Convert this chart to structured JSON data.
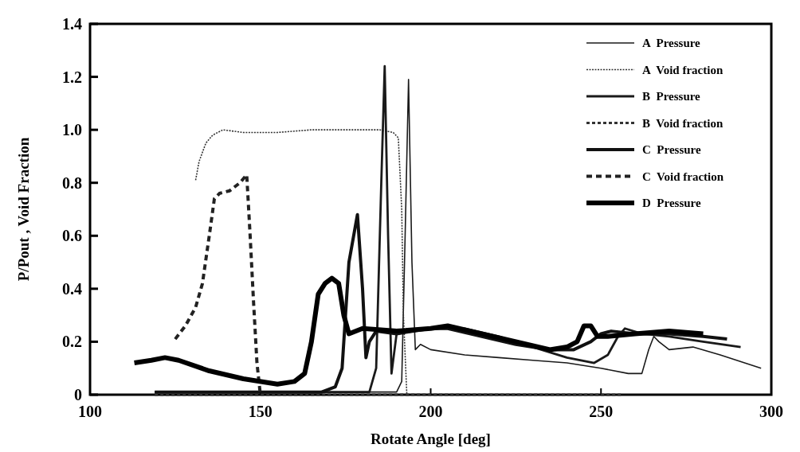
{
  "chart_data": {
    "type": "line",
    "xlabel": "Rotate Angle [deg]",
    "ylabel": "P/Pout , Void Fraction",
    "xlim": [
      100,
      300
    ],
    "ylim": [
      0,
      1.4
    ],
    "xticks": [
      100,
      150,
      200,
      250,
      300
    ],
    "yticks": [
      {
        "value": 0,
        "label": "0"
      },
      {
        "value": 0.2,
        "label": "0.2"
      },
      {
        "value": 0.4,
        "label": "0.4"
      },
      {
        "value": 0.6,
        "label": "0.6"
      },
      {
        "value": 0.8,
        "label": "0.8"
      },
      {
        "value": 1.0,
        "label": "1.0"
      },
      {
        "value": 1.2,
        "label": "1.2"
      },
      {
        "value": 1.4,
        "label": "1.4"
      }
    ],
    "grid": false,
    "legend": "top right",
    "marker": "none",
    "series": [
      {
        "name": "A  Pressure",
        "color": "#1a1a1a",
        "line_style": "solid",
        "x": [
          119,
          150,
          180,
          190,
          191.5,
          192.5,
          193.5,
          194.5,
          195.5,
          197,
          200,
          210,
          220,
          230,
          240,
          250,
          258,
          262,
          264,
          265.5,
          267,
          270,
          277,
          285,
          297
        ],
        "values": [
          0.01,
          0.01,
          0.01,
          0.01,
          0.05,
          0.6,
          1.19,
          0.5,
          0.17,
          0.19,
          0.17,
          0.15,
          0.14,
          0.13,
          0.12,
          0.1,
          0.08,
          0.08,
          0.17,
          0.22,
          0.2,
          0.17,
          0.18,
          0.15,
          0.1
        ]
      },
      {
        "name": "A  Void fraction",
        "color": "#333333",
        "line_style": "dotted",
        "x": [
          131,
          132,
          134,
          136,
          139,
          145,
          155,
          165,
          175,
          185,
          189,
          190.5,
          191.5,
          192,
          193
        ],
        "values": [
          0.81,
          0.88,
          0.95,
          0.98,
          1.0,
          0.99,
          0.99,
          1.0,
          1.0,
          1.0,
          0.99,
          0.97,
          0.7,
          0.3,
          0
        ]
      },
      {
        "name": "B  Pressure",
        "color": "#1a1a1a",
        "line_style": "solid",
        "x": [
          119,
          150,
          175,
          182,
          184,
          185.5,
          186.5,
          187.5,
          188.5,
          190,
          195,
          200,
          210,
          220,
          230,
          240,
          248,
          252,
          255,
          257,
          262,
          270,
          280,
          291
        ],
        "values": [
          0.01,
          0.01,
          0.01,
          0.01,
          0.1,
          0.8,
          1.24,
          0.6,
          0.08,
          0.23,
          0.24,
          0.25,
          0.25,
          0.22,
          0.18,
          0.14,
          0.12,
          0.15,
          0.22,
          0.25,
          0.23,
          0.22,
          0.2,
          0.18
        ]
      },
      {
        "name": "B  Void fraction",
        "color": "#333333",
        "line_style": "dashed",
        "x": [
          119,
          150,
          193,
          220,
          256
        ],
        "values": [
          0,
          0,
          0,
          0,
          0
        ]
      },
      {
        "name": "C  Pressure",
        "color": "#111111",
        "line_style": "solid",
        "x": [
          119,
          150,
          168,
          172,
          174,
          176,
          178.5,
          180,
          181,
          182,
          184,
          190,
          200,
          205,
          215,
          225,
          235,
          242,
          247,
          250,
          253,
          260,
          270,
          280,
          287
        ],
        "values": [
          0.01,
          0.01,
          0.01,
          0.03,
          0.1,
          0.5,
          0.68,
          0.4,
          0.14,
          0.2,
          0.24,
          0.23,
          0.25,
          0.25,
          0.22,
          0.19,
          0.17,
          0.17,
          0.2,
          0.23,
          0.24,
          0.23,
          0.23,
          0.22,
          0.21
        ]
      },
      {
        "name": "C  Void fraction",
        "color": "#222222",
        "line_style": "dashed",
        "x": [
          125,
          128,
          131,
          133,
          135,
          136.5,
          138,
          141,
          144,
          146,
          147,
          148,
          149,
          150
        ],
        "values": [
          0.21,
          0.26,
          0.33,
          0.42,
          0.6,
          0.74,
          0.76,
          0.77,
          0.8,
          0.83,
          0.6,
          0.35,
          0.12,
          0
        ]
      },
      {
        "name": "D  Pressure",
        "color": "#000000",
        "line_style": "solid",
        "x": [
          113,
          118,
          122,
          126,
          135,
          145,
          155,
          160,
          163,
          165,
          167,
          169,
          171,
          173,
          174.5,
          176,
          180,
          190,
          200,
          205,
          215,
          225,
          235,
          240,
          243,
          245,
          247,
          249,
          252,
          260,
          270,
          280
        ],
        "values": [
          0.12,
          0.13,
          0.14,
          0.13,
          0.09,
          0.06,
          0.04,
          0.05,
          0.08,
          0.2,
          0.38,
          0.42,
          0.44,
          0.42,
          0.3,
          0.23,
          0.25,
          0.24,
          0.25,
          0.26,
          0.23,
          0.2,
          0.17,
          0.18,
          0.2,
          0.26,
          0.26,
          0.22,
          0.22,
          0.23,
          0.24,
          0.23
        ]
      }
    ]
  }
}
